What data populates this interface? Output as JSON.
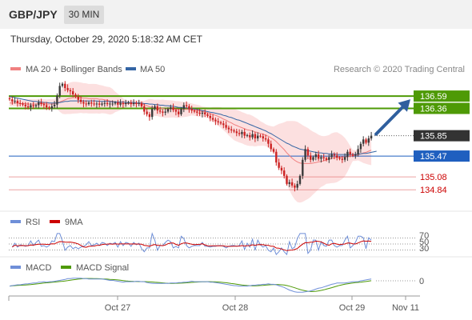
{
  "header": {
    "symbol": "GBP/JPY",
    "timeframe": "30 MIN"
  },
  "datetime": "Thursday, October 29, 2020 5:18:32 AM CET",
  "colors": {
    "ma20": "#f08080",
    "bollinger_fill": "#fbd5d5",
    "ma50": "#3465a4",
    "resistance": "#4e9a06",
    "pivot": "#1f5fbf",
    "support": "#e06666",
    "forecast_arrow": "#2f5f9e",
    "rsi": "#6f8fd8",
    "rsi_ma": "#cc0000",
    "macd": "#6f8fd8",
    "macd_signal": "#4e9a06",
    "up_candle": "#3a3a3a",
    "down_candle": "#cc2222"
  },
  "chart_data": [
    {
      "type": "candlestick",
      "legend": [
        {
          "name": "MA 20 + Bollinger Bands",
          "color": "#f08080"
        },
        {
          "name": "MA 50",
          "color": "#3465a4"
        }
      ],
      "source": "Research © 2020 Trading Central",
      "x_ticks": [
        "Oct 27",
        "Oct 28",
        "Oct 29",
        "Nov 11"
      ],
      "ylim": [
        134.5,
        136.95
      ],
      "levels": [
        {
          "value": 136.59,
          "label": "136.59",
          "kind": "resistance"
        },
        {
          "value": 136.36,
          "label": "136.36",
          "kind": "resistance"
        },
        {
          "value": 135.85,
          "label": "135.85",
          "kind": "last"
        },
        {
          "value": 135.47,
          "label": "135.47",
          "kind": "pivot"
        },
        {
          "value": 135.08,
          "label": "135.08",
          "kind": "support"
        },
        {
          "value": 134.84,
          "label": "134.84",
          "kind": "support"
        }
      ],
      "close": [
        136.53,
        136.49,
        136.5,
        136.46,
        136.45,
        136.43,
        136.4,
        136.38,
        136.42,
        136.4,
        136.42,
        136.47,
        136.44,
        136.42,
        136.38,
        136.36,
        136.4,
        136.43,
        136.6,
        136.78,
        136.82,
        136.74,
        136.7,
        136.68,
        136.62,
        136.58,
        136.52,
        136.48,
        136.45,
        136.44,
        136.47,
        136.45,
        136.44,
        136.45,
        136.43,
        136.45,
        136.46,
        136.44,
        136.45,
        136.45,
        136.47,
        136.43,
        136.46,
        136.44,
        136.46,
        136.47,
        136.44,
        136.46,
        136.45,
        136.46,
        136.4,
        136.3,
        136.25,
        136.2,
        136.35,
        136.4,
        136.32,
        136.3,
        136.28,
        136.3,
        136.35,
        136.38,
        136.33,
        136.3,
        136.25,
        136.35,
        136.42,
        136.4,
        136.35,
        136.32,
        136.3,
        136.28,
        136.26,
        136.28,
        136.25,
        136.22,
        136.18,
        136.15,
        136.12,
        136.1,
        136.08,
        136.05,
        136.0,
        135.97,
        135.95,
        135.93,
        135.9,
        135.88,
        135.92,
        135.85,
        135.86,
        135.82,
        135.88,
        135.8,
        135.85,
        135.84,
        135.8,
        135.78,
        135.7,
        135.6,
        135.55,
        135.35,
        135.25,
        135.2,
        135.1,
        134.95,
        134.98,
        134.92,
        134.88,
        134.95,
        135.1,
        135.4,
        135.6,
        135.48,
        135.4,
        135.45,
        135.5,
        135.42,
        135.45,
        135.43,
        135.4,
        135.45,
        135.5,
        135.48,
        135.44,
        135.42,
        135.4,
        135.45,
        135.55,
        135.5,
        135.48,
        135.5,
        135.6,
        135.7,
        135.78,
        135.72,
        135.8,
        135.85
      ],
      "ma20": [
        136.46,
        136.46,
        136.46,
        136.46,
        136.45,
        136.45,
        136.45,
        136.44,
        136.44,
        136.44,
        136.44,
        136.45,
        136.45,
        136.45,
        136.44,
        136.44,
        136.44,
        136.45,
        136.46,
        136.48,
        136.5,
        136.52,
        136.54,
        136.55,
        136.56,
        136.56,
        136.56,
        136.56,
        136.55,
        136.55,
        136.54,
        136.54,
        136.54,
        136.54,
        136.53,
        136.53,
        136.52,
        136.51,
        136.5,
        136.49,
        136.48,
        136.47,
        136.46,
        136.45,
        136.45,
        136.45,
        136.45,
        136.45,
        136.45,
        136.45,
        136.44,
        136.43,
        136.41,
        136.39,
        136.38,
        136.37,
        136.37,
        136.36,
        136.36,
        136.35,
        136.35,
        136.35,
        136.35,
        136.34,
        136.34,
        136.34,
        136.34,
        136.34,
        136.34,
        136.34,
        136.33,
        136.32,
        136.31,
        136.3,
        136.29,
        136.28,
        136.26,
        136.25,
        136.23,
        136.21,
        136.19,
        136.16,
        136.14,
        136.11,
        136.09,
        136.06,
        136.04,
        136.02,
        136.0,
        135.98,
        135.96,
        135.95,
        135.94,
        135.92,
        135.91,
        135.89,
        135.88,
        135.86,
        135.84,
        135.81,
        135.78,
        135.74,
        135.69,
        135.64,
        135.59,
        135.53,
        135.48,
        135.43,
        135.39,
        135.36,
        135.34,
        135.33,
        135.33,
        135.33,
        135.33,
        135.34,
        135.35,
        135.36,
        135.37,
        135.38,
        135.4,
        135.41,
        135.43,
        135.44,
        135.45,
        135.45,
        135.45,
        135.45,
        135.46,
        135.47,
        135.48,
        135.48,
        135.49,
        135.51,
        135.53,
        135.54,
        135.56,
        135.58
      ],
      "ma50": [
        136.58,
        136.57,
        136.56,
        136.55,
        136.54,
        136.53,
        136.52,
        136.51,
        136.5,
        136.49,
        136.49,
        136.48,
        136.48,
        136.47,
        136.47,
        136.46,
        136.46,
        136.46,
        136.46,
        136.47,
        136.48,
        136.49,
        136.49,
        136.5,
        136.5,
        136.5,
        136.5,
        136.5,
        136.5,
        136.5,
        136.5,
        136.5,
        136.5,
        136.5,
        136.49,
        136.49,
        136.49,
        136.49,
        136.49,
        136.48,
        136.48,
        136.48,
        136.48,
        136.48,
        136.47,
        136.47,
        136.47,
        136.47,
        136.46,
        136.46,
        136.46,
        136.45,
        136.45,
        136.44,
        136.44,
        136.43,
        136.43,
        136.42,
        136.42,
        136.41,
        136.41,
        136.4,
        136.4,
        136.39,
        136.38,
        136.38,
        136.37,
        136.37,
        136.36,
        136.35,
        136.35,
        136.34,
        136.33,
        136.32,
        136.31,
        136.3,
        136.29,
        136.28,
        136.27,
        136.26,
        136.25,
        136.23,
        136.22,
        136.2,
        136.19,
        136.17,
        136.15,
        136.14,
        136.12,
        136.1,
        136.08,
        136.06,
        136.04,
        136.02,
        136.0,
        135.98,
        135.96,
        135.94,
        135.91,
        135.89,
        135.86,
        135.83,
        135.8,
        135.77,
        135.74,
        135.71,
        135.69,
        135.66,
        135.64,
        135.62,
        135.6,
        135.59,
        135.58,
        135.57,
        135.56,
        135.55,
        135.54,
        135.53,
        135.53,
        135.52,
        135.52,
        135.51,
        135.51,
        135.51,
        135.5,
        135.5,
        135.5,
        135.5,
        135.5,
        135.5,
        135.5,
        135.5,
        135.51,
        135.51,
        135.52,
        135.52,
        135.53,
        135.54,
        135.55,
        135.56
      ]
    },
    {
      "type": "line",
      "legend": [
        {
          "name": "RSI",
          "color": "#6f8fd8"
        },
        {
          "name": "9MA",
          "color": "#cc0000"
        }
      ],
      "y_ticks": [
        "70",
        "50",
        "30"
      ],
      "ylim": [
        10,
        90
      ]
    },
    {
      "type": "line",
      "legend": [
        {
          "name": "MACD",
          "color": "#6f8fd8"
        },
        {
          "name": "MACD Signal",
          "color": "#4e9a06"
        }
      ],
      "y_ticks": [
        "0"
      ]
    }
  ]
}
